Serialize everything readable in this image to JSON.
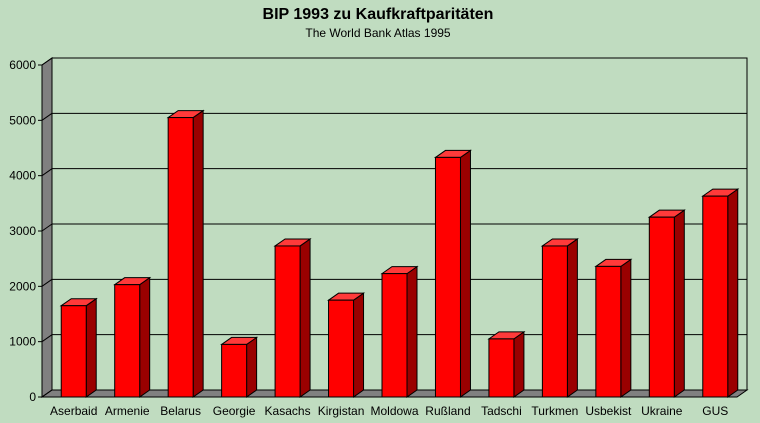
{
  "chart_data": {
    "type": "bar",
    "title": "BIP 1993 zu Kaufkraftparitäten",
    "subtitle": "The World Bank Atlas 1995",
    "xlabel": "",
    "ylabel": "",
    "categories": [
      "Aserbaid",
      "Armenie",
      "Belarus",
      "Georgie",
      "Kasachs",
      "Kirgistan",
      "Moldowa",
      "Rußland",
      "Tadschi",
      "Turkmen",
      "Usbekist",
      "Ukraine",
      "GUS"
    ],
    "values": [
      1650,
      2030,
      5050,
      950,
      2730,
      1750,
      2230,
      4330,
      1050,
      2730,
      2360,
      3250,
      3630
    ],
    "ylim": [
      0,
      6000
    ],
    "yticks": [
      0,
      1000,
      2000,
      3000,
      4000,
      5000,
      6000
    ],
    "grid": true,
    "bar_style": "3d",
    "colors": {
      "bar_front": "#ff0000",
      "bar_top": "#ff3a3a",
      "bar_side": "#9a0000",
      "wall": "#c0dcc0",
      "floor": "#808080",
      "background": "#c0dcc0",
      "grid": "#000000"
    }
  }
}
